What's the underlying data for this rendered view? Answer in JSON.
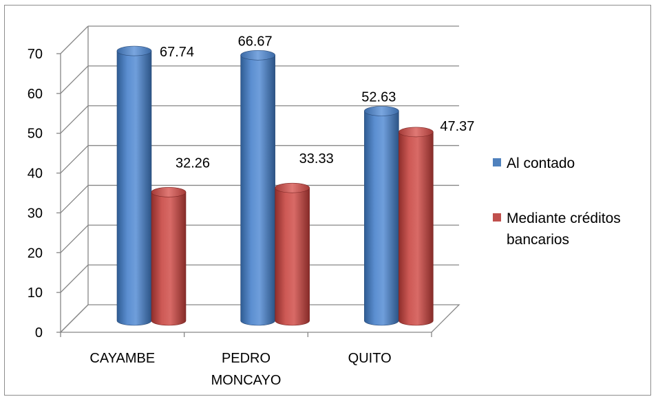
{
  "chart_data": {
    "type": "bar",
    "title": "",
    "xlabel": "",
    "ylabel": "",
    "ylim": [
      0,
      70
    ],
    "yticks": [
      "0",
      "10",
      "20",
      "30",
      "40",
      "50",
      "60",
      "70"
    ],
    "categories": [
      [
        "CAYAMBE"
      ],
      [
        "PEDRO",
        "MONCAYO"
      ],
      [
        "QUITO"
      ]
    ],
    "series": [
      {
        "name": "Al contado",
        "color": "#4f81bd",
        "values": [
          67.74,
          66.67,
          52.63
        ],
        "labels": [
          "67.74",
          "66.67",
          "52.63"
        ]
      },
      {
        "name": "Mediante créditos bancarios",
        "name_lines": [
          "Mediante créditos",
          "bancarios"
        ],
        "color": "#c0504d",
        "values": [
          32.26,
          33.33,
          47.37
        ],
        "labels": [
          "32.26",
          "33.33",
          "47.37"
        ]
      }
    ],
    "grid": true,
    "legend": "right",
    "style": "3d-cylinder"
  }
}
